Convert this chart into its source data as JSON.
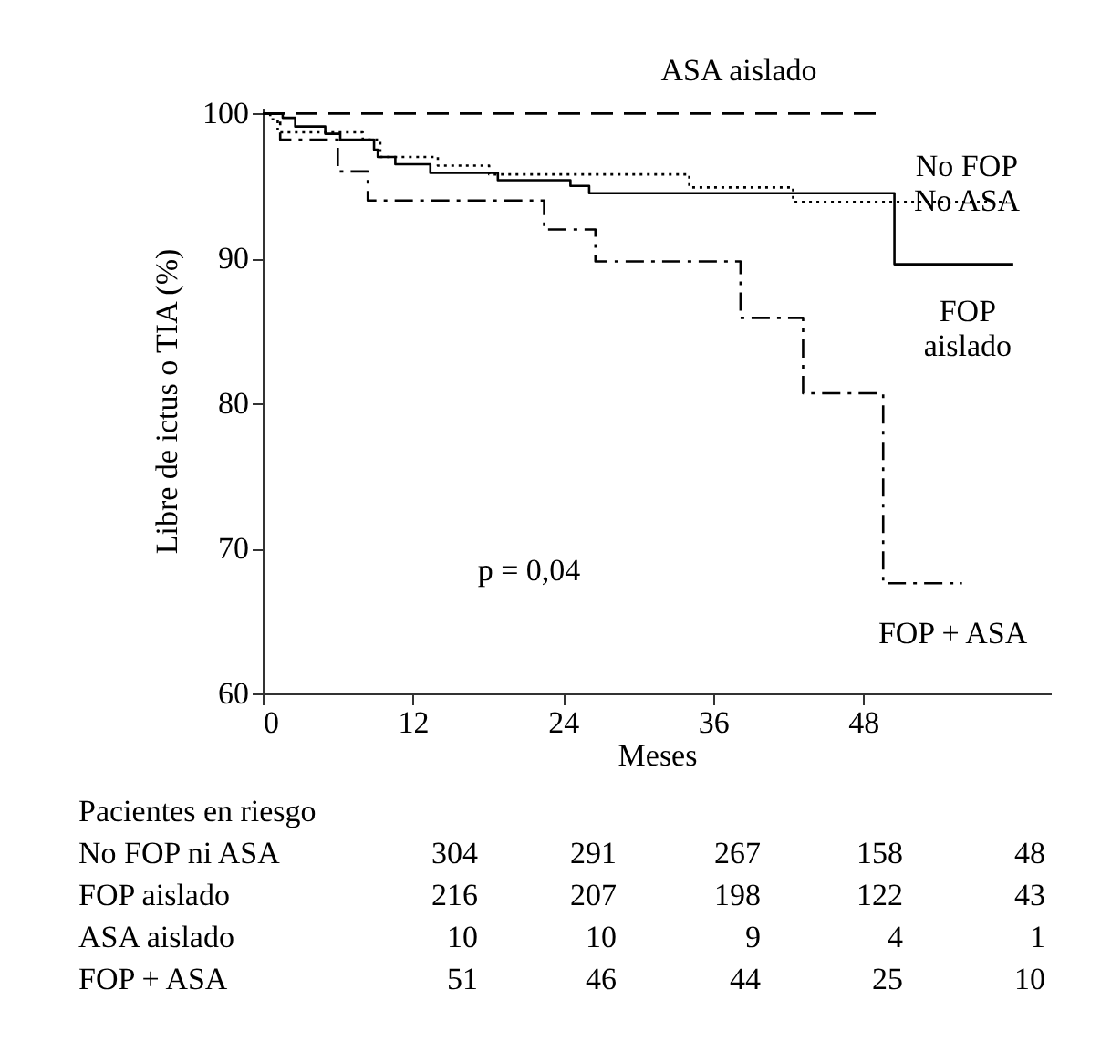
{
  "chart_data": {
    "type": "step",
    "xlabel": "Meses",
    "ylabel": "Libre de ictus o TIA (%)",
    "xlim": [
      0,
      63
    ],
    "xticks": [
      0,
      12,
      24,
      36,
      48
    ],
    "ylim": [
      60,
      100.4
    ],
    "yticks": [
      60,
      70,
      80,
      90,
      100
    ],
    "grid": false,
    "annotations": [
      "p = 0,04",
      "Pacientes en riesgo",
      "No FOP ni ASA 304 291 267 158 48",
      "FOP aislado 216 207 198 122 43",
      "ASA aislado 10 10 9 4 1",
      "FOP + ASA 51 46 44 25 10"
    ],
    "series": [
      {
        "name": "ASA aislado",
        "color": "#000000",
        "line_style": "dashed",
        "x": [
          0,
          49
        ],
        "values": [
          100,
          100
        ]
      },
      {
        "name": "No FOP\nNo ASA",
        "color": "#000000",
        "line_style": "dotted",
        "x": [
          0,
          0.6,
          1.2,
          8,
          9.4,
          14,
          18.1,
          34.1,
          42.4,
          59.5
        ],
        "values": [
          100,
          99.6,
          98.7,
          98.2,
          97,
          96.4,
          95.8,
          94.9,
          93.9,
          93.9
        ]
      },
      {
        "name": "FOP\naislado",
        "color": "#000000",
        "line_style": "solid",
        "x": [
          0,
          1.6,
          2.6,
          5,
          6.2,
          8.9,
          9.2,
          10.6,
          13.4,
          18.8,
          24.6,
          26.1,
          50.5,
          60
        ],
        "values": [
          100,
          99.7,
          99.1,
          98.6,
          98.2,
          97.5,
          97,
          96.5,
          95.9,
          95.4,
          95,
          94.5,
          89.6,
          89.6
        ]
      },
      {
        "name": "FOP + ASA",
        "color": "#000000",
        "line_style": "dashdot",
        "x": [
          0,
          1.4,
          6,
          8.4,
          22.5,
          26.6,
          38.2,
          43.2,
          49.6,
          55.9
        ],
        "values": [
          100,
          98.2,
          96,
          94,
          92,
          89.8,
          85.9,
          80.7,
          67.6,
          67.6
        ]
      }
    ]
  }
}
